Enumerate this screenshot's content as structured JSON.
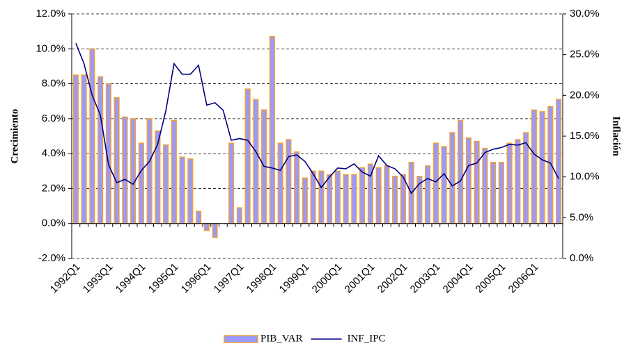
{
  "chart_data": {
    "type": "bar",
    "y_label": "Crecimiento",
    "y2_label": "Inflación",
    "categories": [
      "1992Q1",
      null,
      null,
      null,
      "1993Q1",
      null,
      null,
      null,
      "1994Q1",
      null,
      null,
      null,
      "1995Q1",
      null,
      null,
      null,
      "1996Q1",
      null,
      null,
      null,
      "1997Q1",
      null,
      null,
      null,
      "1998Q1",
      null,
      null,
      null,
      "1999Q1",
      null,
      null,
      null,
      "2000Q1",
      null,
      null,
      null,
      "2001Q1",
      null,
      null,
      null,
      "2002Q1",
      null,
      null,
      null,
      "2003Q1",
      null,
      null,
      null,
      "2004Q1",
      null,
      null,
      null,
      "2005Q1",
      null,
      null,
      null,
      "2006Q1",
      null,
      null,
      null
    ],
    "series": [
      {
        "name": "PIB_VAR",
        "type": "bar",
        "color": "#9999ff",
        "edgecolor": "#f0a030",
        "values": [
          8.5,
          8.5,
          10.0,
          8.4,
          8.0,
          7.2,
          6.1,
          6.0,
          4.6,
          6.0,
          5.3,
          4.5,
          5.9,
          3.8,
          3.7,
          0.7,
          -0.4,
          -0.8,
          null,
          4.6,
          0.9,
          7.7,
          7.1,
          6.5,
          10.7,
          4.6,
          4.8,
          4.1,
          2.6,
          3.0,
          3.0,
          2.8,
          3.0,
          2.8,
          2.8,
          3.2,
          3.4,
          3.2,
          3.3,
          2.7,
          2.8,
          3.5,
          2.7,
          3.3,
          4.6,
          4.4,
          5.2,
          5.9,
          4.9,
          4.7,
          4.3,
          3.5,
          3.5,
          4.6,
          4.8,
          5.2,
          6.5,
          6.4,
          6.7,
          7.1
        ]
      },
      {
        "name": "INF_IPC",
        "type": "line",
        "axis": "y2",
        "color": "#000080",
        "values": [
          26.4,
          23.9,
          20.0,
          17.6,
          11.5,
          9.3,
          9.7,
          9.1,
          10.8,
          11.9,
          14.0,
          18.1,
          23.9,
          22.6,
          22.6,
          23.7,
          18.8,
          19.1,
          18.2,
          14.5,
          14.7,
          14.5,
          13.1,
          11.3,
          11.1,
          10.8,
          12.5,
          12.7,
          11.9,
          10.4,
          8.7,
          10.0,
          11.1,
          11.0,
          11.6,
          10.6,
          10.1,
          12.6,
          11.4,
          11.0,
          10.0,
          8.0,
          9.2,
          9.8,
          9.4,
          10.4,
          8.9,
          9.5,
          11.4,
          11.7,
          13.0,
          13.4,
          13.6,
          14.0,
          13.9,
          14.2,
          12.8,
          12.1,
          11.7,
          9.8
        ]
      }
    ],
    "ylim": [
      -2,
      12
    ],
    "yticks": [
      {
        "value": -2,
        "label": "-2.0%"
      },
      {
        "value": 0,
        "label": "0.0%"
      },
      {
        "value": 2,
        "label": "2.0%"
      },
      {
        "value": 4,
        "label": "4.0%"
      },
      {
        "value": 6,
        "label": "6.0%"
      },
      {
        "value": 8,
        "label": "8.0%"
      },
      {
        "value": 10,
        "label": "10.0%"
      },
      {
        "value": 12,
        "label": "12.0%"
      }
    ],
    "y2lim": [
      0,
      30
    ],
    "y2ticks": [
      {
        "value": 0,
        "label": "0.0%"
      },
      {
        "value": 5,
        "label": "5.0%"
      },
      {
        "value": 10,
        "label": "10.0%"
      },
      {
        "value": 15,
        "label": "15.0%"
      },
      {
        "value": 20,
        "label": "20.0%"
      },
      {
        "value": 25,
        "label": "25.0%"
      },
      {
        "value": 30,
        "label": "30.0%"
      }
    ],
    "grid": true,
    "legend": "bottom"
  }
}
